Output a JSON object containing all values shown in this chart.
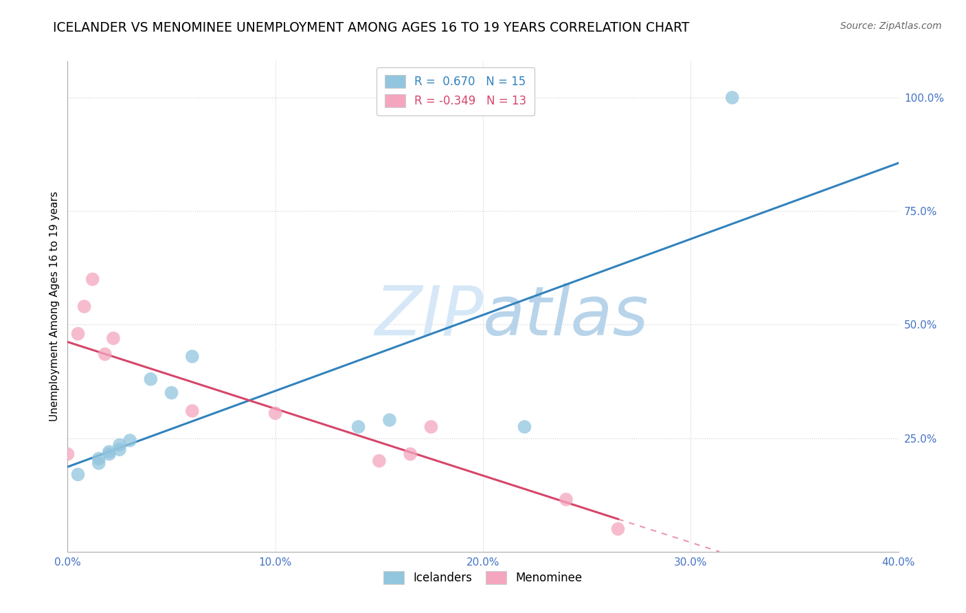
{
  "title": "ICELANDER VS MENOMINEE UNEMPLOYMENT AMONG AGES 16 TO 19 YEARS CORRELATION CHART",
  "source": "Source: ZipAtlas.com",
  "ylabel": "Unemployment Among Ages 16 to 19 years",
  "xlim": [
    0.0,
    0.4
  ],
  "ylim": [
    0.0,
    1.08
  ],
  "xtick_vals": [
    0.0,
    0.1,
    0.2,
    0.3,
    0.4
  ],
  "ytick_vals": [
    0.25,
    0.5,
    0.75,
    1.0
  ],
  "icelander_x": [
    0.005,
    0.015,
    0.015,
    0.02,
    0.02,
    0.025,
    0.025,
    0.03,
    0.04,
    0.05,
    0.06,
    0.14,
    0.155,
    0.22,
    0.32
  ],
  "icelander_y": [
    0.17,
    0.195,
    0.205,
    0.215,
    0.22,
    0.225,
    0.235,
    0.245,
    0.38,
    0.35,
    0.43,
    0.275,
    0.29,
    0.275,
    1.0
  ],
  "menominee_x": [
    0.0,
    0.005,
    0.008,
    0.012,
    0.018,
    0.022,
    0.06,
    0.1,
    0.15,
    0.165,
    0.175,
    0.24,
    0.265
  ],
  "menominee_y": [
    0.215,
    0.48,
    0.54,
    0.6,
    0.435,
    0.47,
    0.31,
    0.305,
    0.2,
    0.215,
    0.275,
    0.115,
    0.05
  ],
  "icelander_color": "#92c5de",
  "menominee_color": "#f4a6be",
  "icelander_line_color": "#3182bd",
  "menominee_line_color": "#d6456a",
  "R_icelander": 0.67,
  "N_icelander": 15,
  "R_menominee": -0.349,
  "N_menominee": 13,
  "background_color": "#ffffff",
  "grid_color": "#cccccc",
  "watermark_color": "#d6e8f7",
  "title_fontsize": 13.5,
  "axis_label_fontsize": 11,
  "tick_fontsize": 11,
  "legend_fontsize": 12,
  "source_fontsize": 10
}
